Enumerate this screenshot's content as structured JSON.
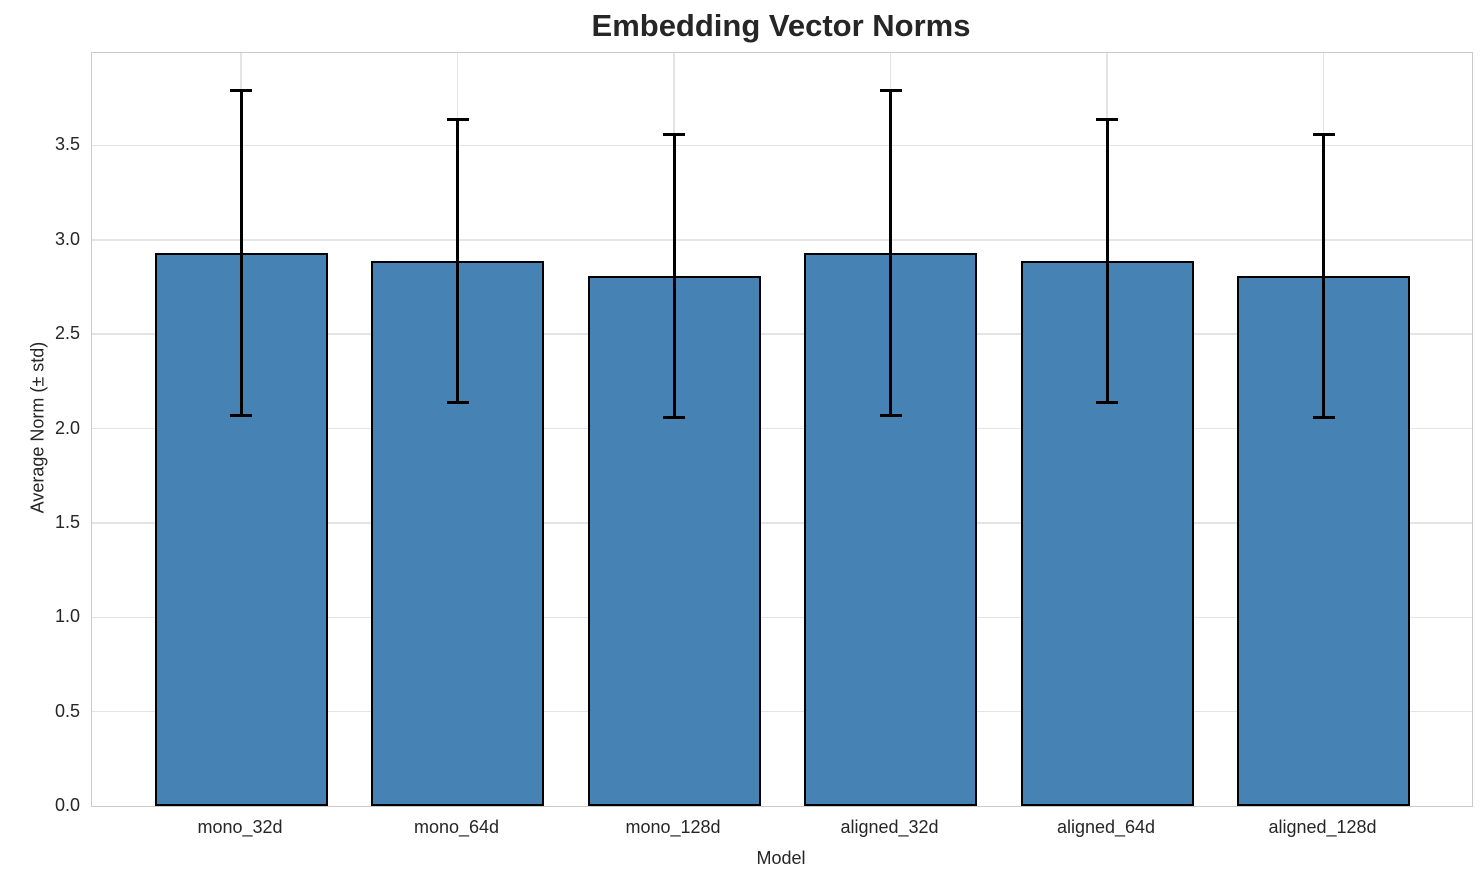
{
  "chart_data": {
    "type": "bar",
    "title": "Embedding Vector Norms",
    "xlabel": "Model",
    "ylabel": "Average Norm (± std)",
    "categories": [
      "mono_32d",
      "mono_64d",
      "mono_128d",
      "aligned_32d",
      "aligned_64d",
      "aligned_128d"
    ],
    "series": [
      {
        "name": "Average Norm",
        "values": [
          2.93,
          2.89,
          2.81,
          2.93,
          2.89,
          2.81
        ]
      }
    ],
    "error_std": [
      0.86,
      0.75,
      0.75,
      0.86,
      0.75,
      0.75
    ],
    "yticks": [
      0.0,
      0.5,
      1.0,
      1.5,
      2.0,
      2.5,
      3.0,
      3.5
    ],
    "ylim": [
      0,
      3.99
    ],
    "grid": true,
    "legend": "none",
    "bar_color": "#4682b4",
    "bar_edge_color": "#000000",
    "error_color": "#000000",
    "text_color": "#262626",
    "grid_color": "#e4e4e4",
    "spine_color": "#cbcbcb",
    "background_color": "#ffffff"
  }
}
